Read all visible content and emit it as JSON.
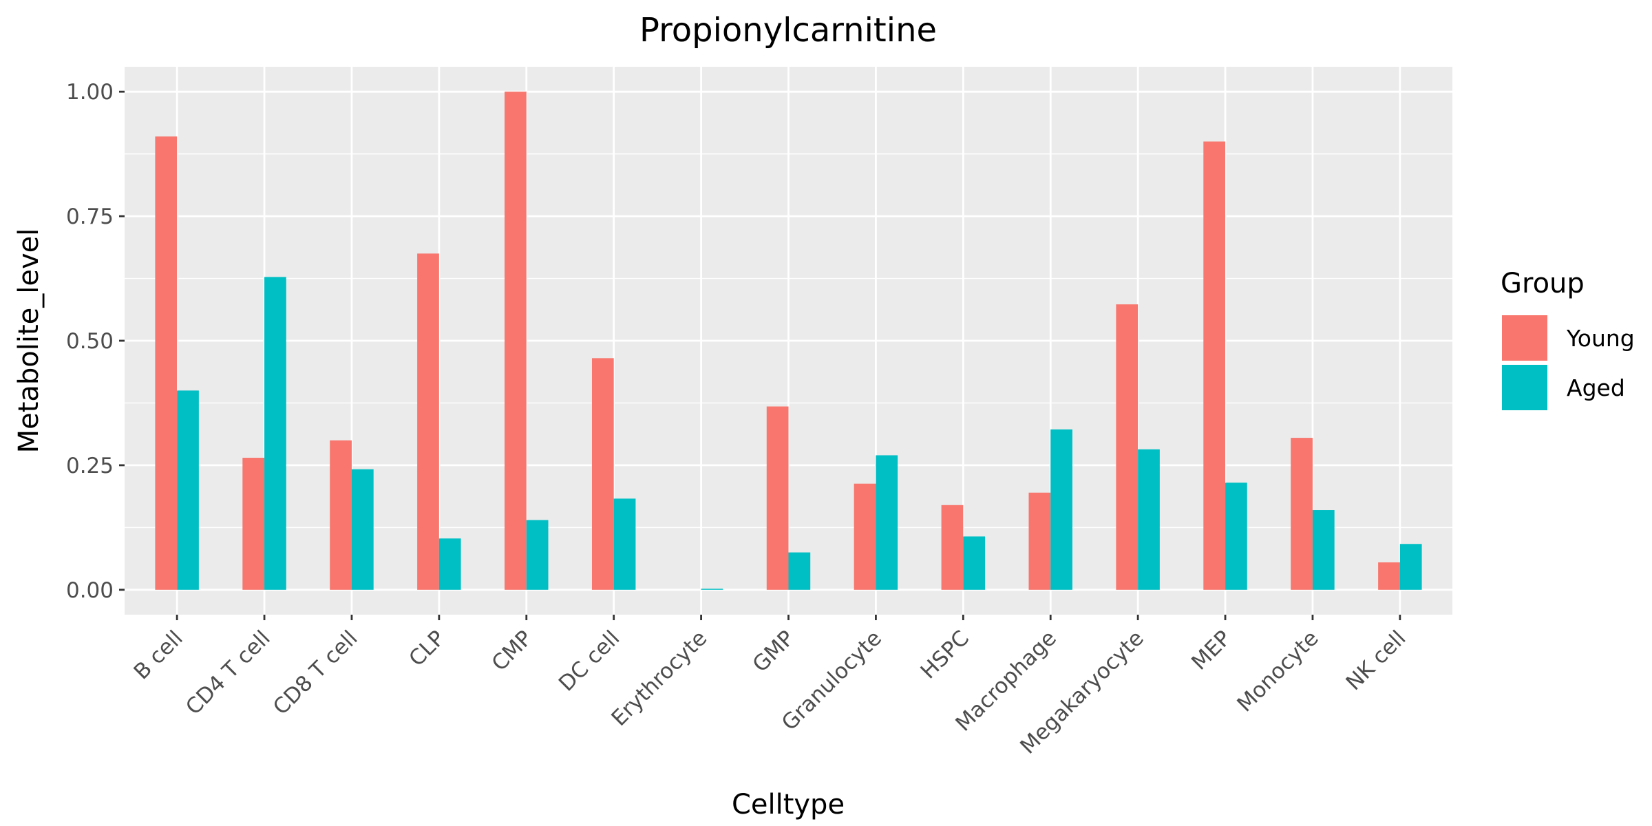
{
  "chart_data": {
    "type": "bar",
    "title": "Propionylcarnitine",
    "xlabel": "Celltype",
    "ylabel": "Metabolite_level",
    "ylim": [
      -0.05,
      1.05
    ],
    "yticks": [
      "0.00",
      "0.25",
      "0.50",
      "0.75",
      "1.00"
    ],
    "ytick_values": [
      0,
      0.25,
      0.5,
      0.75,
      1.0
    ],
    "grid": true,
    "legend_position": "right",
    "legend_title": "Group",
    "categories": [
      "B cell",
      "CD4 T cell",
      "CD8 T cell",
      "CLP",
      "CMP",
      "DC cell",
      "Erythrocyte",
      "GMP",
      "Granulocyte",
      "HSPC",
      "Macrophage",
      "Megakaryocyte",
      "MEP",
      "Monocyte",
      "NK cell"
    ],
    "series": [
      {
        "name": "Young",
        "color": "#F8766D",
        "values": [
          0.91,
          0.265,
          0.3,
          0.675,
          1.0,
          0.465,
          0.0,
          0.368,
          0.213,
          0.17,
          0.195,
          0.573,
          0.9,
          0.305,
          0.055
        ]
      },
      {
        "name": "Aged",
        "color": "#00BFC4",
        "values": [
          0.4,
          0.628,
          0.242,
          0.103,
          0.14,
          0.183,
          0.002,
          0.075,
          0.27,
          0.107,
          0.322,
          0.282,
          0.215,
          0.16,
          0.092
        ]
      }
    ]
  }
}
